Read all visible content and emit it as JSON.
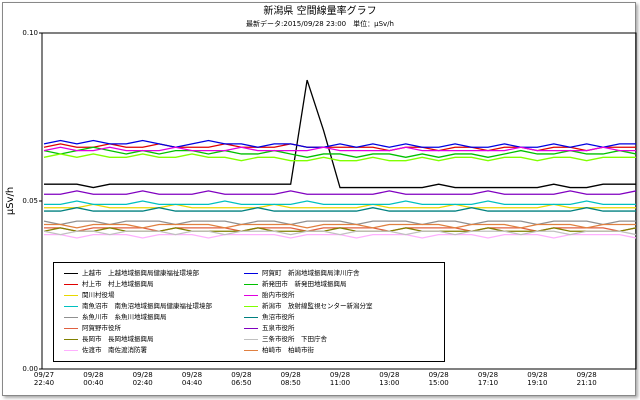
{
  "chart_data": {
    "type": "line",
    "title": "新潟県 空間線量率グラフ",
    "subtitle": "最新データ:2015/09/28 23:00　単位：μSv/h",
    "y_label": "μSv/h",
    "categories": [
      "09/27\n22:40",
      null,
      null,
      "09/28\n00:40",
      null,
      null,
      "09/28\n02:40",
      null,
      null,
      "09/28\n04:40",
      null,
      null,
      "09/28\n06:50",
      null,
      null,
      "09/28\n08:50",
      null,
      null,
      "09/28\n11:00",
      null,
      null,
      "09/28\n13:00",
      null,
      null,
      "09/28\n15:00",
      null,
      null,
      "09/28\n17:10",
      null,
      null,
      "09/28\n19:10",
      null,
      null,
      "09/28\n21:10",
      null,
      null,
      null
    ],
    "ylim": [
      0,
      0.1
    ],
    "yticks": [
      {
        "value": 0,
        "label": "0.00"
      },
      {
        "value": 0.05,
        "label": "0.05"
      },
      {
        "value": 0.1,
        "label": "0.10"
      }
    ],
    "series": [
      {
        "name": "上越市　上越地域振興局健康福祉環境部",
        "color": "#000000",
        "values": [
          0.055,
          0.055,
          0.055,
          0.054,
          0.055,
          0.055,
          0.055,
          0.055,
          0.055,
          0.055,
          0.055,
          0.055,
          0.055,
          0.055,
          0.055,
          0.055,
          0.086,
          0.071,
          0.054,
          0.054,
          0.054,
          0.054,
          0.054,
          0.054,
          0.055,
          0.054,
          0.054,
          0.054,
          0.054,
          0.054,
          0.054,
          0.055,
          0.054,
          0.054,
          0.055,
          0.055,
          0.055
        ]
      },
      {
        "name": "村上市　村上地域振興局",
        "color": "#e00000",
        "values": [
          0.066,
          0.067,
          0.066,
          0.066,
          0.067,
          0.066,
          0.066,
          0.067,
          0.066,
          0.066,
          0.066,
          0.067,
          0.066,
          0.066,
          0.066,
          0.067,
          0.066,
          0.066,
          0.066,
          0.066,
          0.066,
          0.065,
          0.066,
          0.066,
          0.065,
          0.066,
          0.066,
          0.065,
          0.066,
          0.066,
          0.065,
          0.066,
          0.066,
          0.065,
          0.066,
          0.066,
          0.066
        ]
      },
      {
        "name": "関川村役場",
        "color": "#e8d800",
        "values": [
          0.048,
          0.048,
          0.048,
          0.049,
          0.048,
          0.048,
          0.048,
          0.048,
          0.049,
          0.048,
          0.048,
          0.048,
          0.048,
          0.048,
          0.049,
          0.048,
          0.048,
          0.048,
          0.048,
          0.048,
          0.049,
          0.048,
          0.048,
          0.048,
          0.048,
          0.049,
          0.048,
          0.048,
          0.048,
          0.048,
          0.048,
          0.049,
          0.048,
          0.048,
          0.048,
          0.048,
          0.048
        ]
      },
      {
        "name": "南魚沼市　南魚沼地域振興局健康福祉環境部",
        "color": "#00c0c0",
        "values": [
          0.049,
          0.049,
          0.05,
          0.049,
          0.049,
          0.049,
          0.05,
          0.049,
          0.049,
          0.049,
          0.049,
          0.05,
          0.049,
          0.049,
          0.049,
          0.049,
          0.05,
          0.049,
          0.049,
          0.049,
          0.049,
          0.049,
          0.05,
          0.049,
          0.049,
          0.049,
          0.049,
          0.05,
          0.049,
          0.049,
          0.049,
          0.049,
          0.049,
          0.05,
          0.049,
          0.049,
          0.049
        ]
      },
      {
        "name": "糸魚川市　糸魚川地域振興局",
        "color": "#909090",
        "values": [
          0.044,
          0.043,
          0.044,
          0.044,
          0.043,
          0.044,
          0.044,
          0.044,
          0.043,
          0.044,
          0.044,
          0.044,
          0.043,
          0.044,
          0.044,
          0.043,
          0.044,
          0.044,
          0.044,
          0.043,
          0.044,
          0.044,
          0.044,
          0.043,
          0.044,
          0.044,
          0.043,
          0.044,
          0.044,
          0.044,
          0.043,
          0.044,
          0.044,
          0.044,
          0.043,
          0.044,
          0.044
        ]
      },
      {
        "name": "阿賀野市役所",
        "color": "#e06040",
        "values": [
          0.042,
          0.042,
          0.041,
          0.042,
          0.042,
          0.042,
          0.042,
          0.041,
          0.042,
          0.042,
          0.042,
          0.042,
          0.041,
          0.042,
          0.042,
          0.042,
          0.041,
          0.042,
          0.042,
          0.042,
          0.042,
          0.041,
          0.042,
          0.042,
          0.042,
          0.042,
          0.041,
          0.042,
          0.042,
          0.042,
          0.041,
          0.042,
          0.042,
          0.042,
          0.042,
          0.041,
          0.042
        ]
      },
      {
        "name": "長岡市　長岡地域振興局",
        "color": "#808000",
        "values": [
          0.041,
          0.042,
          0.041,
          0.041,
          0.042,
          0.041,
          0.041,
          0.041,
          0.042,
          0.041,
          0.041,
          0.041,
          0.041,
          0.042,
          0.041,
          0.041,
          0.041,
          0.041,
          0.042,
          0.041,
          0.041,
          0.041,
          0.042,
          0.041,
          0.041,
          0.041,
          0.041,
          0.042,
          0.041,
          0.041,
          0.041,
          0.042,
          0.041,
          0.041,
          0.041,
          0.041,
          0.042
        ]
      },
      {
        "name": "佐渡市　南佐渡消防署",
        "color": "#ffb0ff",
        "values": [
          0.04,
          0.04,
          0.039,
          0.04,
          0.04,
          0.04,
          0.039,
          0.04,
          0.04,
          0.04,
          0.039,
          0.04,
          0.04,
          0.04,
          0.04,
          0.039,
          0.04,
          0.04,
          0.04,
          0.039,
          0.04,
          0.04,
          0.04,
          0.039,
          0.04,
          0.04,
          0.04,
          0.039,
          0.04,
          0.04,
          0.04,
          0.039,
          0.04,
          0.04,
          0.04,
          0.04,
          0.039
        ]
      },
      {
        "name": "阿賀町　新潟地域振興局津川庁舎",
        "color": "#0000e0",
        "values": [
          0.067,
          0.068,
          0.067,
          0.068,
          0.067,
          0.067,
          0.068,
          0.067,
          0.066,
          0.067,
          0.068,
          0.067,
          0.067,
          0.066,
          0.067,
          0.067,
          0.066,
          0.066,
          0.067,
          0.066,
          0.067,
          0.066,
          0.067,
          0.066,
          0.066,
          0.067,
          0.066,
          0.066,
          0.067,
          0.066,
          0.066,
          0.067,
          0.066,
          0.067,
          0.066,
          0.067,
          0.067
        ]
      },
      {
        "name": "新発田市　新発田地域振興局",
        "color": "#00c000",
        "values": [
          0.065,
          0.064,
          0.065,
          0.066,
          0.065,
          0.064,
          0.065,
          0.064,
          0.065,
          0.065,
          0.064,
          0.065,
          0.064,
          0.064,
          0.065,
          0.064,
          0.063,
          0.064,
          0.064,
          0.063,
          0.064,
          0.064,
          0.063,
          0.064,
          0.063,
          0.064,
          0.064,
          0.063,
          0.064,
          0.065,
          0.064,
          0.064,
          0.065,
          0.064,
          0.064,
          0.065,
          0.064
        ]
      },
      {
        "name": "胎内市役所",
        "color": "#e000e0",
        "values": [
          0.065,
          0.066,
          0.065,
          0.065,
          0.066,
          0.065,
          0.065,
          0.065,
          0.066,
          0.065,
          0.065,
          0.065,
          0.066,
          0.065,
          0.065,
          0.065,
          0.065,
          0.066,
          0.065,
          0.065,
          0.065,
          0.065,
          0.066,
          0.065,
          0.065,
          0.065,
          0.065,
          0.065,
          0.065,
          0.066,
          0.065,
          0.065,
          0.065,
          0.065,
          0.066,
          0.065,
          0.065
        ]
      },
      {
        "name": "新潟市　放射線監視センター新潟分室",
        "color": "#80ff00",
        "values": [
          0.063,
          0.064,
          0.063,
          0.064,
          0.063,
          0.063,
          0.064,
          0.063,
          0.063,
          0.064,
          0.063,
          0.063,
          0.062,
          0.063,
          0.063,
          0.062,
          0.062,
          0.063,
          0.062,
          0.062,
          0.063,
          0.062,
          0.062,
          0.063,
          0.062,
          0.063,
          0.063,
          0.062,
          0.063,
          0.063,
          0.062,
          0.063,
          0.063,
          0.062,
          0.063,
          0.063,
          0.063
        ]
      },
      {
        "name": "魚沼市役所",
        "color": "#008080",
        "values": [
          0.047,
          0.047,
          0.048,
          0.047,
          0.047,
          0.047,
          0.047,
          0.048,
          0.047,
          0.047,
          0.047,
          0.047,
          0.047,
          0.048,
          0.047,
          0.047,
          0.047,
          0.047,
          0.047,
          0.047,
          0.048,
          0.047,
          0.047,
          0.047,
          0.047,
          0.047,
          0.048,
          0.047,
          0.047,
          0.047,
          0.047,
          0.047,
          0.047,
          0.048,
          0.047,
          0.047,
          0.047
        ]
      },
      {
        "name": "五泉市役所",
        "color": "#8000c0",
        "values": [
          0.052,
          0.052,
          0.053,
          0.052,
          0.052,
          0.052,
          0.053,
          0.052,
          0.052,
          0.052,
          0.053,
          0.052,
          0.052,
          0.052,
          0.052,
          0.053,
          0.052,
          0.052,
          0.052,
          0.052,
          0.052,
          0.053,
          0.052,
          0.052,
          0.052,
          0.052,
          0.052,
          0.053,
          0.052,
          0.052,
          0.052,
          0.052,
          0.053,
          0.052,
          0.052,
          0.052,
          0.053
        ]
      },
      {
        "name": "三条市役所　下田庁舎",
        "color": "#c0c0c0",
        "values": [
          0.041,
          0.04,
          0.041,
          0.041,
          0.04,
          0.041,
          0.041,
          0.041,
          0.04,
          0.041,
          0.041,
          0.04,
          0.041,
          0.041,
          0.041,
          0.04,
          0.041,
          0.041,
          0.04,
          0.041,
          0.041,
          0.041,
          0.04,
          0.041,
          0.041,
          0.04,
          0.041,
          0.041,
          0.041,
          0.04,
          0.041,
          0.041,
          0.04,
          0.041,
          0.041,
          0.041,
          0.04
        ]
      },
      {
        "name": "柏崎市　柏崎市街",
        "color": "#e08040",
        "values": [
          0.043,
          0.043,
          0.042,
          0.043,
          0.043,
          0.043,
          0.042,
          0.043,
          0.043,
          0.043,
          0.043,
          0.042,
          0.043,
          0.043,
          0.043,
          0.043,
          0.042,
          0.043,
          0.043,
          0.043,
          0.042,
          0.043,
          0.043,
          0.043,
          0.043,
          0.042,
          0.043,
          0.043,
          0.043,
          0.042,
          0.043,
          0.043,
          0.043,
          0.042,
          0.043,
          0.043,
          0.043
        ]
      }
    ]
  }
}
